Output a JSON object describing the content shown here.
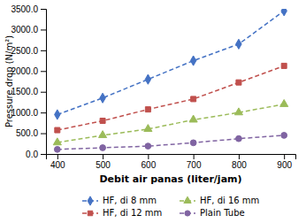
{
  "chart_data": {
    "type": "line",
    "x": [
      400,
      500,
      600,
      700,
      800,
      900
    ],
    "series": [
      {
        "name": "HF, di 8 mm",
        "color": "#4472C4",
        "marker": "diamond",
        "line_style": "dashed",
        "values": [
          950,
          1350,
          1800,
          2250,
          2650,
          3450
        ]
      },
      {
        "name": "HF, di 12 mm",
        "color": "#C0504D",
        "marker": "square",
        "line_style": "dashed",
        "values": [
          575,
          800,
          1075,
          1325,
          1725,
          2125
        ]
      },
      {
        "name": "HF, di 16 mm",
        "color": "#9BBB59",
        "marker": "triangle",
        "line_style": "dashed",
        "values": [
          275,
          450,
          600,
          825,
          1000,
          1200
        ]
      },
      {
        "name": "Plain Tube",
        "color": "#8064A2",
        "marker": "circle",
        "line_style": "dashed",
        "values": [
          110,
          150,
          190,
          270,
          370,
          450
        ]
      }
    ],
    "xlabel": "Debit air panas (liter/jam)",
    "ylabel": "Pressure drop (N/m²)",
    "xlim": [
      375,
      925
    ],
    "xticks": [
      400,
      500,
      600,
      700,
      800,
      900
    ],
    "ylim": [
      0,
      3500
    ],
    "yticks": [
      {
        "value": 0,
        "label": "0.0"
      },
      {
        "value": 500,
        "label": "500.0"
      },
      {
        "value": 1000,
        "label": "1000.0"
      },
      {
        "value": 1500,
        "label": "1500.0"
      },
      {
        "value": 2000,
        "label": "2000.0"
      },
      {
        "value": 2500,
        "label": "2500.0"
      },
      {
        "value": 3000,
        "label": "3000.0"
      },
      {
        "value": 3500,
        "label": "3500.0"
      }
    ],
    "legend": "bottom"
  }
}
